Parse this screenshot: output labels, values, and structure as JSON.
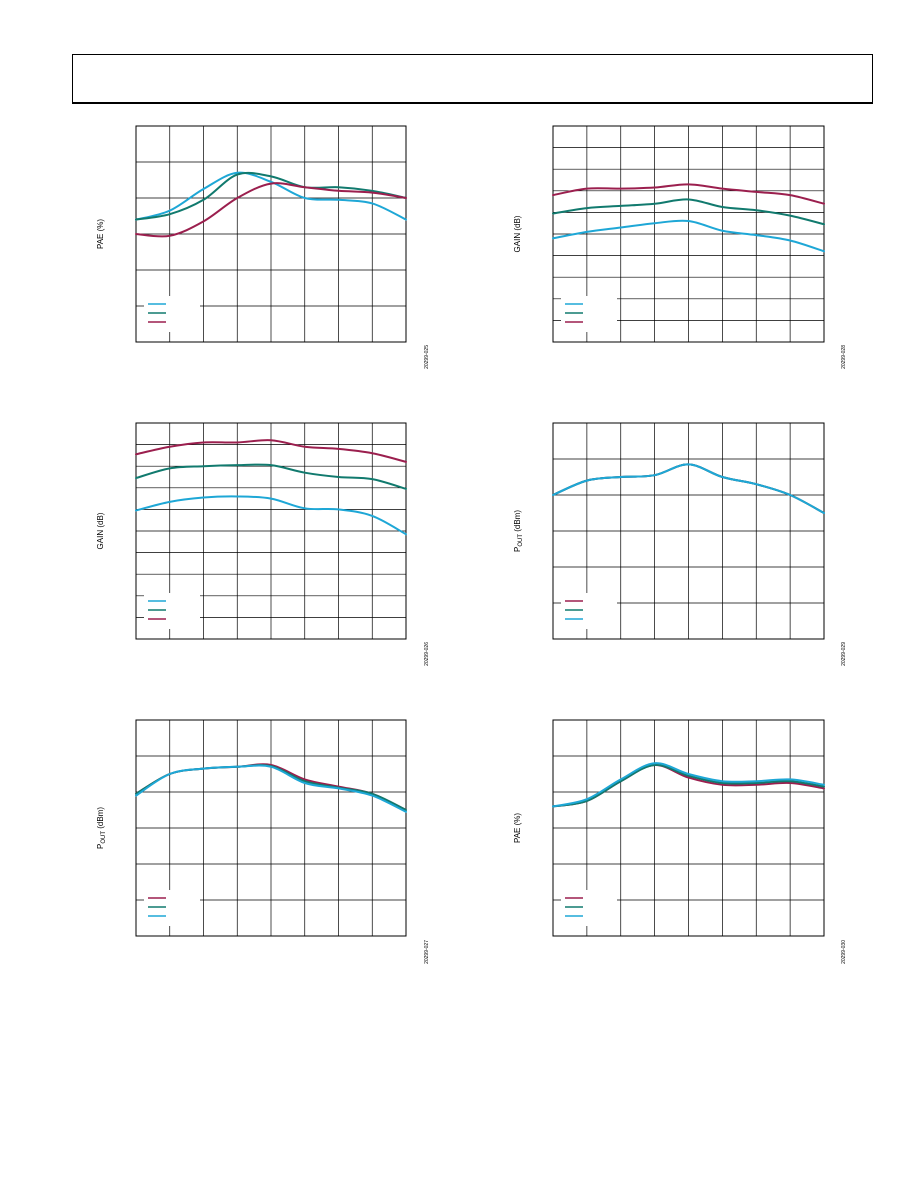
{
  "colors": {
    "cyan": "#1ea7d6",
    "teal": "#117a6e",
    "magenta": "#9b1f4e",
    "grid": "#000000"
  },
  "chart_data": [
    {
      "type": "line",
      "ylabel": "PAE (%)",
      "figure_id": "20299-025",
      "x": [
        0,
        1,
        2,
        3,
        4,
        5,
        6,
        7,
        8
      ],
      "xlim": [
        0,
        8
      ],
      "ylim": [
        0,
        6
      ],
      "grid": true,
      "legend_placement": "bottom-left",
      "series": [
        {
          "color": "cyan",
          "values": [
            3.4,
            3.65,
            4.25,
            4.7,
            4.45,
            4.0,
            3.95,
            3.85,
            3.4
          ]
        },
        {
          "color": "teal",
          "values": [
            3.4,
            3.55,
            3.95,
            4.65,
            4.6,
            4.3,
            4.3,
            4.2,
            4.0
          ]
        },
        {
          "color": "magenta",
          "values": [
            3.0,
            2.95,
            3.35,
            4.0,
            4.4,
            4.3,
            4.2,
            4.15,
            4.0
          ]
        }
      ]
    },
    {
      "type": "line",
      "ylabel": "GAIN (dB)",
      "figure_id": "20299-028",
      "x": [
        0,
        1,
        2,
        3,
        4,
        5,
        6,
        7,
        8
      ],
      "xlim": [
        0,
        8
      ],
      "ylim": [
        0,
        10
      ],
      "grid": true,
      "legend_placement": "bottom-left",
      "series": [
        {
          "color": "cyan",
          "values": [
            4.8,
            5.1,
            5.3,
            5.5,
            5.6,
            5.15,
            4.95,
            4.7,
            4.2
          ]
        },
        {
          "color": "teal",
          "values": [
            5.95,
            6.2,
            6.3,
            6.4,
            6.6,
            6.25,
            6.1,
            5.85,
            5.45
          ]
        },
        {
          "color": "magenta",
          "values": [
            6.8,
            7.1,
            7.1,
            7.15,
            7.3,
            7.1,
            6.95,
            6.8,
            6.4
          ]
        }
      ]
    },
    {
      "type": "line",
      "ylabel": "GAIN (dB)",
      "figure_id": "20299-026",
      "x": [
        0,
        1,
        2,
        3,
        4,
        5,
        6,
        7,
        8
      ],
      "xlim": [
        0,
        8
      ],
      "ylim": [
        0,
        10
      ],
      "grid": true,
      "legend_placement": "bottom-left",
      "series": [
        {
          "color": "cyan",
          "values": [
            5.95,
            6.35,
            6.55,
            6.6,
            6.5,
            6.05,
            6.0,
            5.7,
            4.85
          ]
        },
        {
          "color": "teal",
          "values": [
            7.45,
            7.9,
            8.0,
            8.05,
            8.05,
            7.7,
            7.5,
            7.4,
            6.95
          ]
        },
        {
          "color": "magenta",
          "values": [
            8.55,
            8.9,
            9.1,
            9.1,
            9.2,
            8.9,
            8.8,
            8.6,
            8.2
          ]
        }
      ]
    },
    {
      "type": "line",
      "ylabel": "POUT (dBm)",
      "figure_id": "20299-029",
      "x": [
        0,
        1,
        2,
        3,
        4,
        5,
        6,
        7,
        8
      ],
      "xlim": [
        0,
        8
      ],
      "ylim": [
        0,
        6
      ],
      "grid": true,
      "legend_placement": "bottom-left",
      "series": [
        {
          "color": "magenta",
          "values": [
            4.0,
            4.4,
            4.5,
            4.55,
            4.85,
            4.5,
            4.3,
            4.0,
            3.5
          ]
        },
        {
          "color": "teal",
          "values": [
            4.0,
            4.4,
            4.5,
            4.55,
            4.85,
            4.5,
            4.3,
            4.0,
            3.5
          ]
        },
        {
          "color": "cyan",
          "values": [
            4.0,
            4.4,
            4.5,
            4.55,
            4.85,
            4.5,
            4.3,
            4.0,
            3.5
          ]
        }
      ]
    },
    {
      "type": "line",
      "ylabel": "POUT (dBm)",
      "figure_id": "20299-027",
      "x": [
        0,
        1,
        2,
        3,
        4,
        5,
        6,
        7,
        8
      ],
      "xlim": [
        0,
        8
      ],
      "ylim": [
        0,
        6
      ],
      "grid": true,
      "legend_placement": "bottom-left",
      "series": [
        {
          "color": "magenta",
          "values": [
            3.95,
            4.5,
            4.65,
            4.7,
            4.75,
            4.35,
            4.15,
            3.95,
            3.5
          ]
        },
        {
          "color": "teal",
          "values": [
            3.95,
            4.5,
            4.65,
            4.7,
            4.72,
            4.3,
            4.12,
            3.95,
            3.5
          ]
        },
        {
          "color": "cyan",
          "values": [
            3.9,
            4.5,
            4.65,
            4.7,
            4.7,
            4.25,
            4.1,
            3.9,
            3.45
          ]
        }
      ]
    },
    {
      "type": "line",
      "ylabel": "PAE (%)",
      "figure_id": "20299-030",
      "x": [
        0,
        1,
        2,
        3,
        4,
        5,
        6,
        7,
        8
      ],
      "xlim": [
        0,
        8
      ],
      "ylim": [
        0,
        6
      ],
      "grid": true,
      "legend_placement": "bottom-left",
      "series": [
        {
          "color": "magenta",
          "values": [
            3.6,
            3.75,
            4.3,
            4.75,
            4.4,
            4.2,
            4.2,
            4.25,
            4.1
          ]
        },
        {
          "color": "teal",
          "values": [
            3.6,
            3.75,
            4.3,
            4.75,
            4.45,
            4.25,
            4.25,
            4.3,
            4.15
          ]
        },
        {
          "color": "cyan",
          "values": [
            3.6,
            3.8,
            4.35,
            4.8,
            4.5,
            4.3,
            4.3,
            4.35,
            4.2
          ]
        }
      ]
    }
  ]
}
